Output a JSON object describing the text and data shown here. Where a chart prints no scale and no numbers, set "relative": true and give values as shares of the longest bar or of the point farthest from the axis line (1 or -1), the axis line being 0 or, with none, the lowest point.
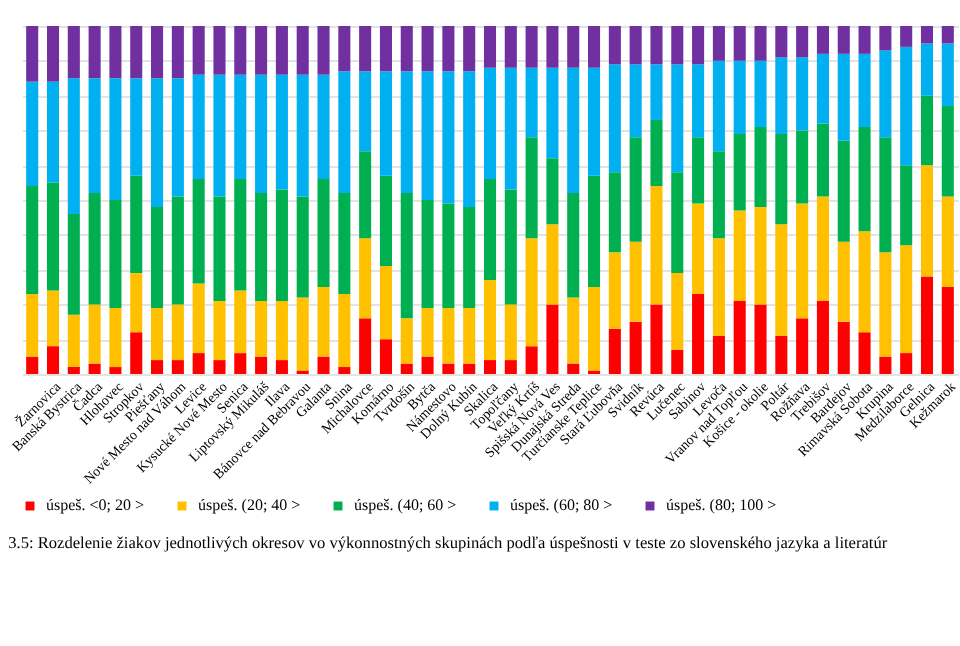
{
  "chart_data": {
    "type": "bar",
    "stacked": true,
    "relative": true,
    "grid": "y",
    "legend": "bottom",
    "categories": [
      null,
      "Žarnovica",
      "Banská Bystrica",
      "Čadca",
      "Hlohovec",
      "Stropkov",
      "Piešťany",
      "Nové Mesto nad Váhom",
      "Levice",
      "Kysucké Nové Mesto",
      "Senica",
      "Liptovský Mikuláš",
      "Ilava",
      "Bánovce nad Bebravou",
      "Galanta",
      "Snina",
      "Michalovce",
      "Komárno",
      "Tvrdošín",
      "Bytča",
      "Námestovo",
      "Dolný Kubín",
      "Skalica",
      "Topoľčany",
      "Veľký Krtíš",
      "Spišská Nová Ves",
      "Dunajská Streda",
      "Turčianske Teplice",
      "Stará Ľubovňa",
      "Svidník",
      "Revúca",
      "Lučenec",
      "Sabinov",
      "Levoča",
      "Vranov nad Topľou",
      "Košice - okolie",
      "Poltár",
      "Rožňava",
      "Trebišov",
      "Bardejov",
      "Rimavská Sobota",
      "Krupina",
      "Medzilaborce",
      "Gelnica",
      "Kežmarok"
    ],
    "series": [
      {
        "name": "úspeš. <0; 20 >",
        "color": "#ff0000",
        "values": [
          0.05,
          0.08,
          0.02,
          0.03,
          0.02,
          0.12,
          0.04,
          0.04,
          0.06,
          0.04,
          0.06,
          0.05,
          0.04,
          0.01,
          0.05,
          0.02,
          0.16,
          0.1,
          0.03,
          0.05,
          0.03,
          0.03,
          0.04,
          0.04,
          0.08,
          0.2,
          0.03,
          0.01,
          0.13,
          0.15,
          0.2,
          0.07,
          0.23,
          0.11,
          0.21,
          0.2,
          0.11,
          0.16,
          0.21,
          0.15,
          0.12,
          0.05,
          0.06,
          0.28,
          0.25
        ]
      },
      {
        "name": "úspeš. (20; 40 >",
        "color": "#ffc000",
        "values": [
          0.18,
          0.16,
          0.15,
          0.17,
          0.17,
          0.17,
          0.15,
          0.16,
          0.2,
          0.17,
          0.18,
          0.16,
          0.17,
          0.21,
          0.2,
          0.21,
          0.23,
          0.21,
          0.13,
          0.14,
          0.16,
          0.16,
          0.23,
          0.16,
          0.31,
          0.23,
          0.19,
          0.24,
          0.22,
          0.23,
          0.34,
          0.22,
          0.26,
          0.28,
          0.26,
          0.28,
          0.32,
          0.33,
          0.3,
          0.23,
          0.29,
          0.3,
          0.31,
          0.32,
          0.26
        ]
      },
      {
        "name": "úspeš. (40; 60 >",
        "color": "#00b050",
        "values": [
          0.31,
          0.31,
          0.29,
          0.32,
          0.31,
          0.28,
          0.29,
          0.31,
          0.3,
          0.3,
          0.32,
          0.31,
          0.32,
          0.29,
          0.31,
          0.29,
          0.25,
          0.26,
          0.36,
          0.31,
          0.3,
          0.29,
          0.29,
          0.33,
          0.29,
          0.19,
          0.3,
          0.32,
          0.23,
          0.3,
          0.19,
          0.29,
          0.19,
          0.25,
          0.22,
          0.23,
          0.26,
          0.21,
          0.21,
          0.29,
          0.3,
          0.33,
          0.23,
          0.2,
          0.26
        ]
      },
      {
        "name": "úspeš. (60; 80 >",
        "color": "#00b0f0",
        "values": [
          0.3,
          0.29,
          0.39,
          0.33,
          0.35,
          0.28,
          0.37,
          0.34,
          0.3,
          0.35,
          0.3,
          0.34,
          0.33,
          0.35,
          0.3,
          0.35,
          0.23,
          0.3,
          0.35,
          0.37,
          0.38,
          0.39,
          0.32,
          0.35,
          0.2,
          0.26,
          0.36,
          0.31,
          0.31,
          0.21,
          0.16,
          0.31,
          0.21,
          0.26,
          0.21,
          0.19,
          0.22,
          0.21,
          0.2,
          0.25,
          0.21,
          0.25,
          0.34,
          0.15,
          0.18
        ]
      },
      {
        "name": "úspeš. (80; 100 >",
        "color": "#7030a0",
        "values": [
          0.16,
          0.16,
          0.15,
          0.15,
          0.15,
          0.15,
          0.15,
          0.15,
          0.14,
          0.14,
          0.14,
          0.14,
          0.14,
          0.14,
          0.14,
          0.13,
          0.13,
          0.13,
          0.13,
          0.13,
          0.13,
          0.13,
          0.12,
          0.12,
          0.12,
          0.12,
          0.12,
          0.12,
          0.11,
          0.11,
          0.11,
          0.11,
          0.11,
          0.1,
          0.1,
          0.1,
          0.09,
          0.09,
          0.08,
          0.08,
          0.08,
          0.07,
          0.06,
          0.05,
          0.05
        ]
      }
    ],
    "annotations": [
      "3.5: Rozdelenie žiakov jednotlivých okresov vo výkonnostných skupinách podľa úspešnosti v teste zo slovenského jazyka a literatúr"
    ]
  }
}
